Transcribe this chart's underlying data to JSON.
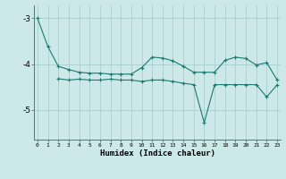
{
  "line1_x": [
    0,
    1,
    2,
    3,
    4,
    5,
    6,
    7,
    8,
    9,
    10,
    11,
    12,
    13,
    14,
    15,
    16,
    17,
    18,
    19,
    20,
    21,
    22,
    23
  ],
  "line1_y": [
    -3.0,
    -3.62,
    -4.05,
    -4.12,
    -4.18,
    -4.2,
    -4.2,
    -4.22,
    -4.22,
    -4.22,
    -4.08,
    -3.85,
    -3.87,
    -3.93,
    -4.05,
    -4.18,
    -4.18,
    -4.18,
    -3.92,
    -3.85,
    -3.88,
    -4.02,
    -3.97,
    -4.35
  ],
  "line2_x": [
    2,
    3,
    4,
    5,
    6,
    7,
    8,
    9,
    10,
    11,
    12,
    13,
    14,
    15,
    16,
    17,
    18,
    19,
    20,
    21,
    22,
    23
  ],
  "line2_y": [
    -4.32,
    -4.35,
    -4.33,
    -4.35,
    -4.35,
    -4.33,
    -4.35,
    -4.35,
    -4.38,
    -4.35,
    -4.35,
    -4.38,
    -4.42,
    -4.45,
    -5.28,
    -4.45,
    -4.45,
    -4.45,
    -4.45,
    -4.45,
    -4.72,
    -4.45
  ],
  "line_color": "#1a7a6e",
  "bg_color": "#cce8e8",
  "grid_color": "#aacece",
  "xlabel": "Humidex (Indice chaleur)",
  "yticks": [
    -5,
    -4,
    -3
  ],
  "ylim": [
    -5.65,
    -2.72
  ],
  "xlim": [
    -0.3,
    23.3
  ],
  "xticks": [
    0,
    1,
    2,
    3,
    4,
    5,
    6,
    7,
    8,
    9,
    10,
    11,
    12,
    13,
    14,
    15,
    16,
    17,
    18,
    19,
    20,
    21,
    22,
    23
  ]
}
